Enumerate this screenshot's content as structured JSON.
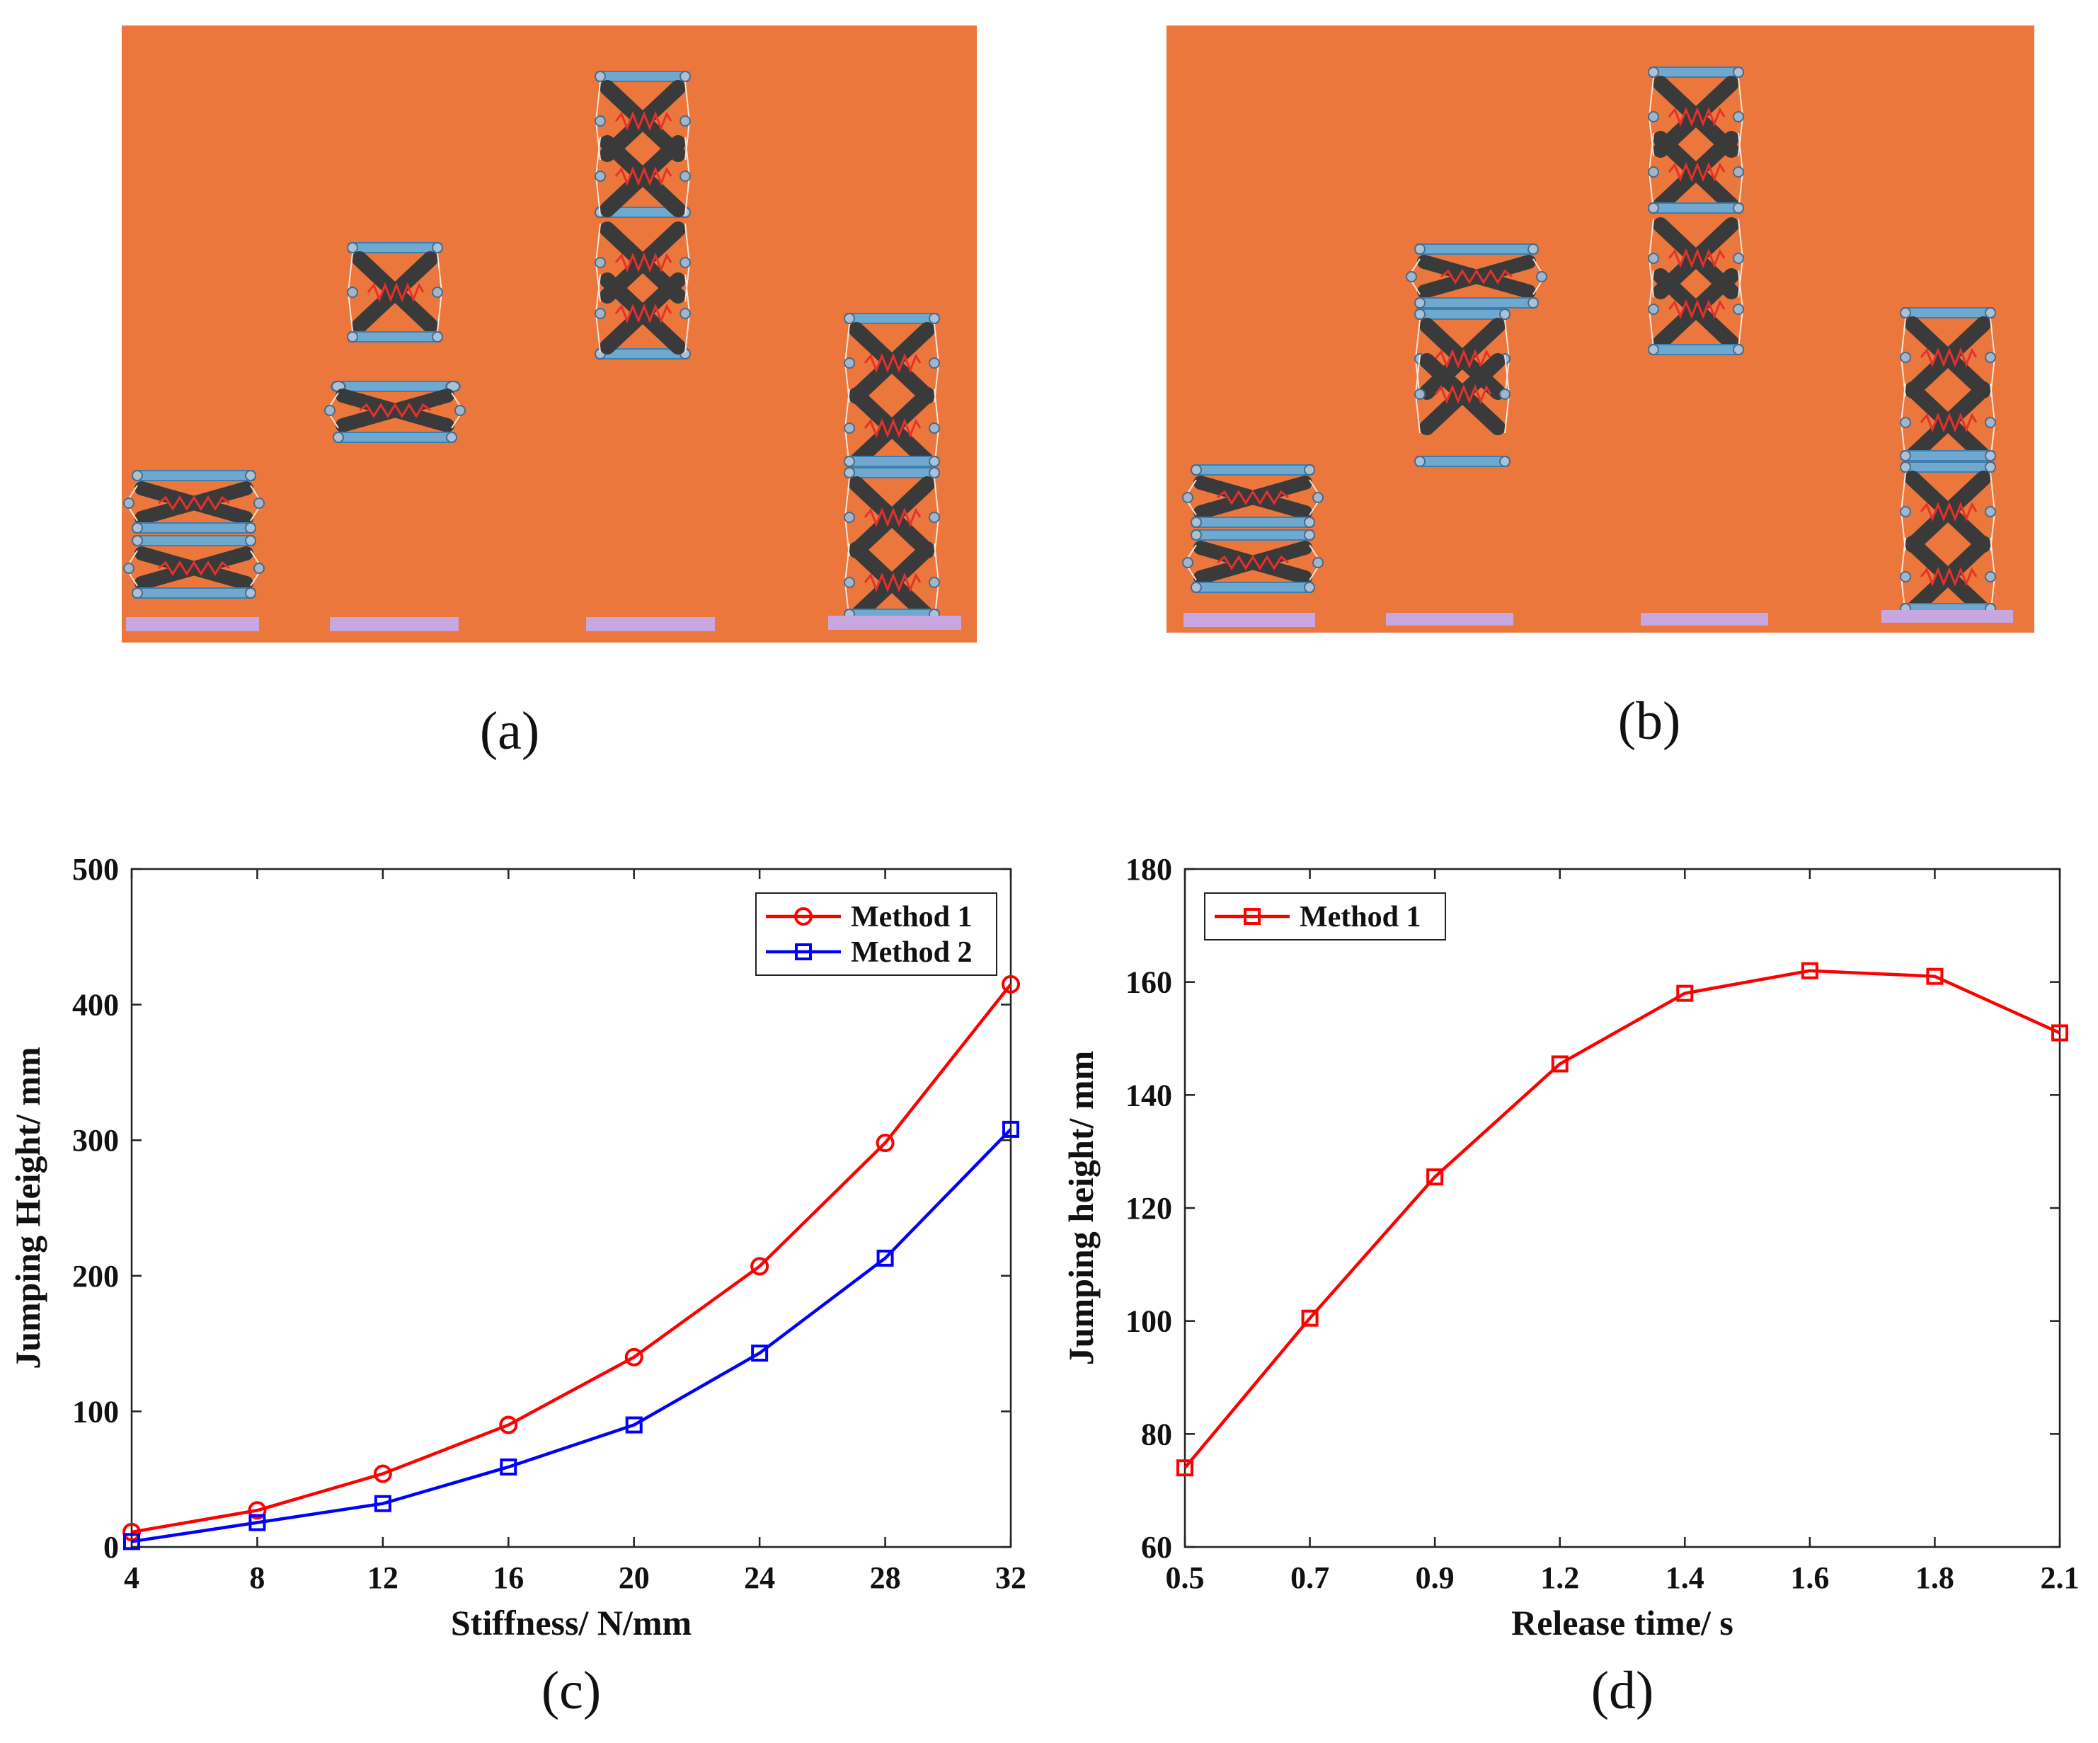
{
  "panels": {
    "a": {
      "label": "(a)",
      "background": "#EB773C",
      "pad_color": "#C8A6E0",
      "steel_color": "#6FA9CF",
      "spring_color": "#E8302A",
      "link_color": "#3A3A3A"
    },
    "b": {
      "label": "(b)",
      "background": "#EB773C",
      "pad_color": "#C8A6E0",
      "steel_color": "#6FA9CF",
      "spring_color": "#E8302A",
      "link_color": "#3A3A3A"
    }
  },
  "chart_data": [
    {
      "panel_label": "(c)",
      "type": "line",
      "xlabel": "Stiffness/ N/mm",
      "ylabel": "Jumping Height/ mm",
      "x": [
        4,
        8,
        12,
        16,
        20,
        24,
        28,
        32
      ],
      "xlim": [
        4,
        32
      ],
      "ylim": [
        0,
        500
      ],
      "xticks": [
        4,
        8,
        12,
        16,
        20,
        24,
        28,
        32
      ],
      "yticks": [
        0,
        100,
        200,
        300,
        400,
        500
      ],
      "legend_position": "top-right",
      "series": [
        {
          "name": "Method 1",
          "marker": "circle",
          "color": "#FF0000",
          "values": [
            11,
            27,
            54,
            90,
            140,
            207,
            298,
            415
          ]
        },
        {
          "name": "Method 2",
          "marker": "square",
          "color": "#0000FF",
          "values": [
            4,
            18,
            32,
            59,
            90,
            143,
            213,
            308
          ]
        }
      ]
    },
    {
      "panel_label": "(d)",
      "type": "line",
      "xlabel": "Release time/ s",
      "ylabel": "Jumping height/ mm",
      "categories": [
        "0.5",
        "0.7",
        "0.9",
        "1.2",
        "1.4",
        "1.6",
        "1.8",
        "2.1"
      ],
      "ylim": [
        60,
        180
      ],
      "yticks": [
        60,
        80,
        100,
        120,
        140,
        160,
        180
      ],
      "legend_position": "top-left",
      "series": [
        {
          "name": "Method 1",
          "marker": "square",
          "color": "#FF0000",
          "values": [
            74,
            100.5,
            125.5,
            145.5,
            158,
            162,
            161,
            151
          ]
        }
      ]
    }
  ]
}
